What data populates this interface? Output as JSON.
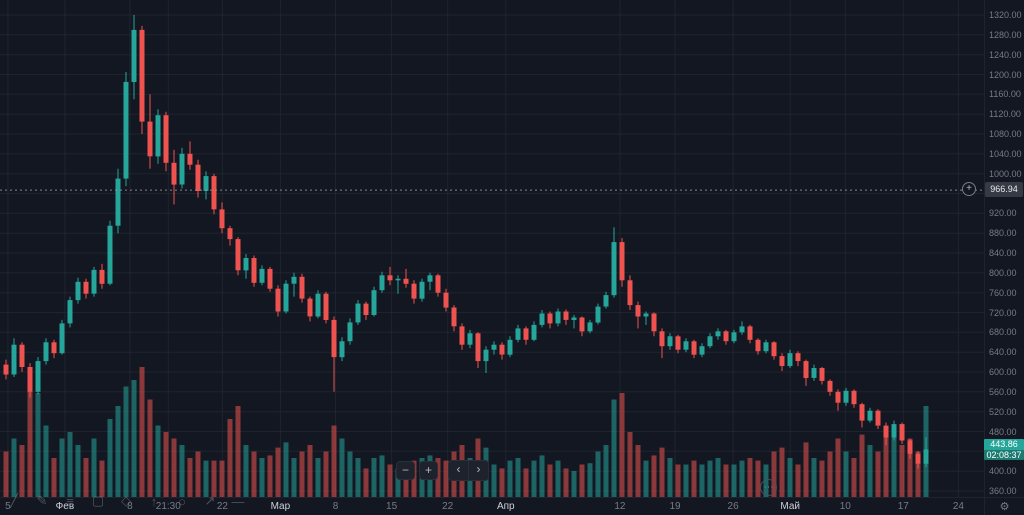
{
  "chart_data": {
    "type": "candlestick",
    "title": "",
    "ylim": [
      360,
      1320
    ],
    "y_ticks": [
      1320,
      1280,
      1240,
      1200,
      1160,
      1120,
      1080,
      1040,
      1000,
      960,
      920,
      880,
      840,
      800,
      760,
      720,
      680,
      640,
      600,
      560,
      520,
      480,
      440,
      400,
      360
    ],
    "x_labels": [
      {
        "t": "5",
        "f": 0.008,
        "m": false
      },
      {
        "t": "Фев",
        "f": 0.066,
        "m": true
      },
      {
        "t": "8",
        "f": 0.132,
        "m": false
      },
      {
        "t": "21:30",
        "f": 0.171,
        "m": false
      },
      {
        "t": "22",
        "f": 0.226,
        "m": false
      },
      {
        "t": "Мар",
        "f": 0.285,
        "m": true
      },
      {
        "t": "8",
        "f": 0.341,
        "m": false
      },
      {
        "t": "15",
        "f": 0.398,
        "m": false
      },
      {
        "t": "22",
        "f": 0.455,
        "m": false
      },
      {
        "t": "Апр",
        "f": 0.514,
        "m": true
      },
      {
        "t": "12",
        "f": 0.63,
        "m": false
      },
      {
        "t": "19",
        "f": 0.686,
        "m": false
      },
      {
        "t": "26",
        "f": 0.745,
        "m": false
      },
      {
        "t": "Май",
        "f": 0.803,
        "m": true
      },
      {
        "t": "10",
        "f": 0.859,
        "m": false
      },
      {
        "t": "17",
        "f": 0.918,
        "m": false
      },
      {
        "t": "24",
        "f": 0.974,
        "m": false
      }
    ],
    "price_line": {
      "value": 966.94,
      "label": "966.94"
    },
    "last_price": {
      "value": 443.86,
      "label": "443.86",
      "countdown": "02:08:37",
      "direction": "up"
    },
    "candles": [
      [
        615,
        625,
        585,
        595,
        35
      ],
      [
        595,
        668,
        590,
        655,
        45
      ],
      [
        655,
        660,
        600,
        610,
        40
      ],
      [
        610,
        618,
        548,
        560,
        95
      ],
      [
        560,
        630,
        555,
        622,
        80
      ],
      [
        622,
        668,
        615,
        660,
        55
      ],
      [
        660,
        665,
        628,
        638,
        30
      ],
      [
        638,
        705,
        635,
        698,
        45
      ],
      [
        698,
        752,
        690,
        745,
        50
      ],
      [
        745,
        790,
        738,
        782,
        40
      ],
      [
        782,
        788,
        748,
        758,
        30
      ],
      [
        758,
        812,
        752,
        806,
        45
      ],
      [
        806,
        818,
        768,
        778,
        28
      ],
      [
        778,
        905,
        775,
        895,
        60
      ],
      [
        895,
        1010,
        880,
        990,
        70
      ],
      [
        990,
        1205,
        975,
        1185,
        85
      ],
      [
        1185,
        1320,
        1150,
        1290,
        90
      ],
      [
        1290,
        1298,
        1080,
        1105,
        100
      ],
      [
        1105,
        1160,
        1010,
        1035,
        75
      ],
      [
        1035,
        1130,
        1020,
        1118,
        55
      ],
      [
        1118,
        1125,
        1005,
        1022,
        50
      ],
      [
        1022,
        1048,
        938,
        978,
        45
      ],
      [
        978,
        1052,
        970,
        1040,
        40
      ],
      [
        1040,
        1065,
        1008,
        1018,
        30
      ],
      [
        1018,
        1028,
        952,
        965,
        35
      ],
      [
        965,
        1005,
        948,
        995,
        28
      ],
      [
        995,
        1000,
        918,
        928,
        28
      ],
      [
        928,
        942,
        880,
        890,
        28
      ],
      [
        890,
        895,
        855,
        868,
        60
      ],
      [
        868,
        872,
        795,
        805,
        70
      ],
      [
        805,
        838,
        788,
        830,
        40
      ],
      [
        830,
        835,
        772,
        780,
        35
      ],
      [
        780,
        815,
        775,
        808,
        30
      ],
      [
        808,
        812,
        762,
        768,
        32
      ],
      [
        768,
        775,
        712,
        722,
        38
      ],
      [
        722,
        785,
        718,
        778,
        42
      ],
      [
        778,
        800,
        752,
        792,
        30
      ],
      [
        792,
        798,
        740,
        748,
        35
      ],
      [
        748,
        752,
        702,
        712,
        40
      ],
      [
        712,
        765,
        708,
        758,
        30
      ],
      [
        758,
        762,
        698,
        705,
        35
      ],
      [
        705,
        712,
        560,
        630,
        55
      ],
      [
        630,
        670,
        622,
        662,
        45
      ],
      [
        662,
        708,
        655,
        700,
        35
      ],
      [
        700,
        745,
        695,
        738,
        30
      ],
      [
        738,
        742,
        705,
        715,
        22
      ],
      [
        715,
        772,
        712,
        765,
        30
      ],
      [
        765,
        802,
        760,
        795,
        32
      ],
      [
        795,
        812,
        775,
        785,
        25
      ],
      [
        785,
        795,
        758,
        788,
        22
      ],
      [
        788,
        808,
        770,
        778,
        25
      ],
      [
        778,
        785,
        738,
        748,
        28
      ],
      [
        748,
        788,
        742,
        782,
        30
      ],
      [
        782,
        800,
        765,
        795,
        32
      ],
      [
        795,
        798,
        752,
        760,
        30
      ],
      [
        760,
        768,
        722,
        730,
        28
      ],
      [
        730,
        735,
        682,
        692,
        35
      ],
      [
        692,
        698,
        645,
        655,
        40
      ],
      [
        655,
        685,
        648,
        678,
        30
      ],
      [
        678,
        680,
        608,
        622,
        45
      ],
      [
        622,
        652,
        598,
        645,
        38
      ],
      [
        645,
        662,
        635,
        655,
        25
      ],
      [
        655,
        660,
        625,
        635,
        22
      ],
      [
        635,
        672,
        630,
        665,
        28
      ],
      [
        665,
        695,
        660,
        688,
        30
      ],
      [
        688,
        692,
        655,
        665,
        22
      ],
      [
        665,
        702,
        662,
        695,
        28
      ],
      [
        695,
        725,
        690,
        718,
        32
      ],
      [
        718,
        722,
        688,
        698,
        25
      ],
      [
        698,
        728,
        692,
        722,
        28
      ],
      [
        722,
        726,
        695,
        705,
        22
      ],
      [
        705,
        715,
        688,
        710,
        20
      ],
      [
        710,
        712,
        672,
        682,
        25
      ],
      [
        682,
        705,
        678,
        700,
        26
      ],
      [
        700,
        738,
        696,
        732,
        35
      ],
      [
        732,
        762,
        728,
        755,
        40
      ],
      [
        755,
        892,
        750,
        862,
        75
      ],
      [
        862,
        870,
        772,
        785,
        80
      ],
      [
        785,
        795,
        725,
        735,
        50
      ],
      [
        735,
        742,
        688,
        712,
        40
      ],
      [
        712,
        722,
        695,
        718,
        28
      ],
      [
        718,
        720,
        672,
        682,
        32
      ],
      [
        682,
        688,
        628,
        652,
        38
      ],
      [
        652,
        678,
        645,
        672,
        30
      ],
      [
        672,
        675,
        638,
        645,
        25
      ],
      [
        645,
        668,
        640,
        662,
        25
      ],
      [
        662,
        665,
        628,
        635,
        28
      ],
      [
        635,
        658,
        630,
        652,
        25
      ],
      [
        652,
        678,
        648,
        672,
        28
      ],
      [
        672,
        688,
        665,
        682,
        30
      ],
      [
        682,
        685,
        655,
        662,
        25
      ],
      [
        662,
        685,
        658,
        680,
        25
      ],
      [
        680,
        702,
        675,
        692,
        28
      ],
      [
        692,
        695,
        658,
        665,
        30
      ],
      [
        665,
        668,
        635,
        642,
        28
      ],
      [
        642,
        665,
        638,
        660,
        25
      ],
      [
        660,
        662,
        625,
        632,
        35
      ],
      [
        632,
        638,
        602,
        612,
        38
      ],
      [
        612,
        645,
        608,
        638,
        30
      ],
      [
        638,
        642,
        612,
        622,
        25
      ],
      [
        622,
        625,
        572,
        588,
        42
      ],
      [
        588,
        615,
        582,
        608,
        30
      ],
      [
        608,
        610,
        575,
        582,
        28
      ],
      [
        582,
        585,
        552,
        560,
        35
      ],
      [
        560,
        565,
        522,
        538,
        45
      ],
      [
        538,
        568,
        532,
        562,
        35
      ],
      [
        562,
        565,
        528,
        535,
        30
      ],
      [
        535,
        538,
        488,
        502,
        48
      ],
      [
        502,
        528,
        498,
        522,
        40
      ],
      [
        522,
        525,
        485,
        492,
        35
      ],
      [
        492,
        498,
        452,
        468,
        50
      ],
      [
        468,
        502,
        462,
        495,
        55
      ],
      [
        495,
        498,
        455,
        462,
        40
      ],
      [
        462,
        465,
        425,
        435,
        45
      ],
      [
        435,
        440,
        405,
        415,
        35
      ],
      [
        415,
        468,
        408,
        443.86,
        70
      ]
    ],
    "colors": {
      "background": "#131722",
      "up": "#26a69a",
      "down": "#ef5350",
      "volume_up": "rgba(38,166,154,0.55)",
      "volume_down": "rgba(239,83,80,0.55)",
      "grid": "rgba(42,46,57,0.55)",
      "dashed_line": "#9598a1",
      "axis_text": "#787b86",
      "month_text": "#cdd0d8",
      "last_price_bg": "#26a69a",
      "price_line_label_bg": "#363a45"
    },
    "legend_position": "none",
    "grid": true
  },
  "drawing_toolbar": {
    "items": [
      {
        "name": "trend-line-icon",
        "glyph": "╱"
      },
      {
        "name": "pencil-draw-icon",
        "glyph": "✎"
      },
      {
        "name": "fib-retracement-icon",
        "glyph": "≡"
      },
      {
        "name": "text-note-icon",
        "glyph": "▢"
      },
      {
        "name": "shapes-icon",
        "glyph": "◇"
      },
      {
        "name": "arrow-up-marker-icon",
        "glyph": "↑"
      },
      {
        "name": "ellipse-tool-icon",
        "glyph": "○"
      },
      {
        "name": "trend-arrow-icon",
        "glyph": "↗"
      },
      {
        "name": "measure-icon",
        "glyph": "—"
      }
    ]
  },
  "nav": {
    "zoom_out_label": "−",
    "zoom_in_label": "+",
    "pan_left_label": "‹",
    "pan_right_label": "›"
  },
  "chrome": {
    "settings_glyph": "⚙",
    "more_glyph": "⋯",
    "alert_plus_glyph": "+"
  }
}
